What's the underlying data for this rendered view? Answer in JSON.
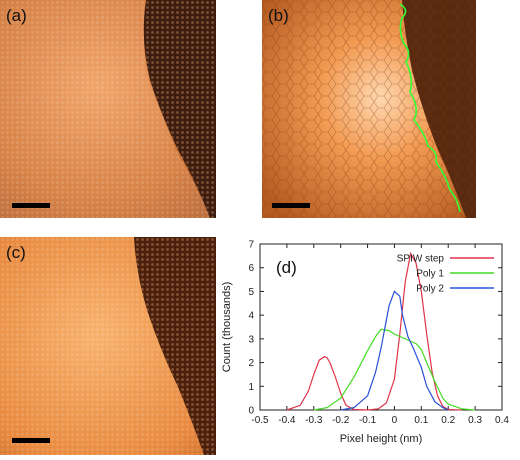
{
  "figure": {
    "panels": [
      {
        "label": "(a)"
      },
      {
        "label": "(b)"
      },
      {
        "label": "(c)"
      },
      {
        "label": "(d)"
      }
    ]
  },
  "colors": {
    "spiw_step": "#e0334a",
    "poly1": "#44dd22",
    "poly2": "#2a4fd6",
    "step_trace": "#33ff33"
  },
  "chart_data": {
    "type": "line",
    "xlabel": "Pixel height (nm)",
    "ylabel": "Count (thousands)",
    "xlim": [
      -0.5,
      0.4
    ],
    "ylim": [
      0,
      7
    ],
    "xticks": [
      "-0.5",
      "-0.4",
      "-0.3",
      "-0.2",
      "-0.1",
      "0",
      "0.1",
      "0.2",
      "0.3",
      "0.4"
    ],
    "yticks": [
      "0",
      "1",
      "2",
      "3",
      "4",
      "5",
      "6",
      "7"
    ],
    "legend_position": "top-right",
    "series": [
      {
        "name": "SPIW step",
        "color": "#e0334a",
        "x": [
          -0.4,
          -0.35,
          -0.32,
          -0.3,
          -0.28,
          -0.26,
          -0.25,
          -0.24,
          -0.22,
          -0.2,
          -0.18,
          -0.15,
          -0.1,
          -0.06,
          -0.03,
          0.0,
          0.02,
          0.04,
          0.06,
          0.08,
          0.1,
          0.12,
          0.14,
          0.16,
          0.18,
          0.2,
          0.25
        ],
        "y": [
          0,
          0.2,
          0.8,
          1.5,
          2.1,
          2.25,
          2.2,
          2.0,
          1.4,
          0.7,
          0.2,
          0.02,
          0,
          0.05,
          0.3,
          1.3,
          3.2,
          5.4,
          6.6,
          6.2,
          5.0,
          3.2,
          1.6,
          0.6,
          0.15,
          0.02,
          0
        ],
        "label_in_legend": "SPIW step"
      },
      {
        "name": "Poly 1",
        "color": "#44dd22",
        "x": [
          -0.3,
          -0.25,
          -0.2,
          -0.15,
          -0.1,
          -0.07,
          -0.05,
          -0.02,
          0.0,
          0.02,
          0.05,
          0.08,
          0.1,
          0.12,
          0.15,
          0.18,
          0.2,
          0.25,
          0.3
        ],
        "y": [
          0,
          0.1,
          0.5,
          1.4,
          2.5,
          3.1,
          3.4,
          3.35,
          3.2,
          3.1,
          2.95,
          2.8,
          2.55,
          2.0,
          1.2,
          0.5,
          0.25,
          0.05,
          0
        ]
      },
      {
        "name": "Poly 2",
        "color": "#2a4fd6",
        "x": [
          -0.2,
          -0.15,
          -0.1,
          -0.07,
          -0.05,
          -0.03,
          -0.02,
          0.0,
          0.02,
          0.03,
          0.05,
          0.07,
          0.1,
          0.12,
          0.15,
          0.18,
          0.2
        ],
        "y": [
          0,
          0.1,
          0.6,
          1.6,
          2.6,
          3.8,
          4.4,
          5.0,
          4.8,
          4.0,
          3.1,
          2.6,
          1.8,
          1.0,
          0.35,
          0.1,
          0
        ]
      }
    ]
  }
}
